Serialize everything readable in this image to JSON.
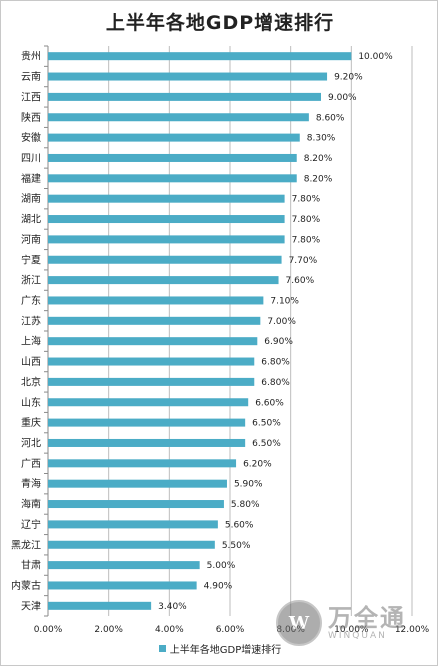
{
  "chart_data": {
    "type": "bar",
    "orientation": "horizontal",
    "title": "上半年各地GDP增速排行",
    "categories": [
      "贵州",
      "云南",
      "江西",
      "陕西",
      "安徽",
      "四川",
      "福建",
      "湖南",
      "湖北",
      "河南",
      "宁夏",
      "浙江",
      "广东",
      "江苏",
      "上海",
      "山西",
      "北京",
      "山东",
      "重庆",
      "河北",
      "广西",
      "青海",
      "海南",
      "辽宁",
      "黑龙江",
      "甘肃",
      "内蒙古",
      "天津"
    ],
    "values": [
      10.0,
      9.2,
      9.0,
      8.6,
      8.3,
      8.2,
      8.2,
      7.8,
      7.8,
      7.8,
      7.7,
      7.6,
      7.1,
      7.0,
      6.9,
      6.8,
      6.8,
      6.6,
      6.5,
      6.5,
      6.2,
      5.9,
      5.8,
      5.6,
      5.5,
      5.0,
      4.9,
      3.4
    ],
    "value_labels": [
      "10.00%",
      "9.20%",
      "9.00%",
      "8.60%",
      "8.30%",
      "8.20%",
      "8.20%",
      "7.80%",
      "7.80%",
      "7.80%",
      "7.70%",
      "7.60%",
      "7.10%",
      "7.00%",
      "6.90%",
      "6.80%",
      "6.80%",
      "6.60%",
      "6.50%",
      "6.50%",
      "6.20%",
      "5.90%",
      "5.80%",
      "5.60%",
      "5.50%",
      "5.00%",
      "4.90%",
      "3.40%"
    ],
    "x_ticks": [
      "0.00%",
      "2.00%",
      "4.00%",
      "6.00%",
      "8.00%",
      "10.00%",
      "12.00%"
    ],
    "xlim": [
      0,
      12
    ],
    "grid": true,
    "bar_color": "#4bacc6",
    "legend": {
      "position": "bottom",
      "entries": [
        "上半年各地GDP增速排行"
      ]
    }
  },
  "watermark": {
    "logo": "W",
    "text_cn": "万全通",
    "text_en": "WINQUAN"
  }
}
